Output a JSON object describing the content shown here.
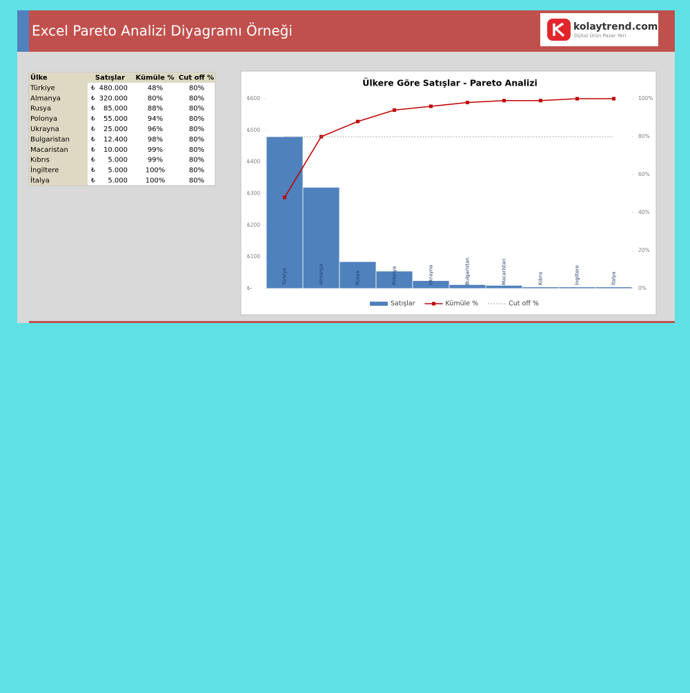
{
  "header": {
    "title": "Excel Pareto Analizi Diyagramı Örneği",
    "brand": "kolaytrend.com",
    "tagline": "Dijital Ürün Pazar Yeri"
  },
  "table": {
    "header": [
      "Ülke",
      "Satışlar",
      "Kümüle %",
      "Cut off %"
    ],
    "rows": [
      [
        "Türkiye",
        "₺",
        "480.000",
        "48%",
        "80%"
      ],
      [
        "Almanya",
        "₺",
        "320.000",
        "80%",
        "80%"
      ],
      [
        "Rusya",
        "₺",
        "85.000",
        "88%",
        "80%"
      ],
      [
        "Polonya",
        "₺",
        "55.000",
        "94%",
        "80%"
      ],
      [
        "Ukrayna",
        "₺",
        "25.000",
        "96%",
        "80%"
      ],
      [
        "Bulgaristan",
        "₺",
        "12.400",
        "98%",
        "80%"
      ],
      [
        "Macaristan",
        "₺",
        "10.000",
        "99%",
        "80%"
      ],
      [
        "Kıbrıs",
        "₺",
        "5.000",
        "99%",
        "80%"
      ],
      [
        "İngiltere",
        "₺",
        "5.000",
        "100%",
        "80%"
      ],
      [
        "İtalya",
        "₺",
        "5.000",
        "100%",
        "80%"
      ]
    ]
  },
  "chart_data": {
    "type": "bar",
    "title": "Ülkere Göre Satışlar - Pareto Analizi",
    "categories": [
      "Türkiye",
      "Almanya",
      "Rusya",
      "Polonya",
      "Ukrayna",
      "Bulgaristan",
      "Macaristan",
      "Kıbrıs",
      "İngiltere",
      "İtalya"
    ],
    "series": [
      {
        "name": "Satışlar",
        "type": "bar",
        "color": "#4f81bd",
        "values": [
          480,
          320,
          85,
          55,
          25,
          12.4,
          10,
          5,
          5,
          5
        ]
      },
      {
        "name": "Kümüle %",
        "type": "line",
        "axis": "y2",
        "color": "#c00000",
        "marker": "square",
        "values": [
          48,
          80,
          88,
          94,
          96,
          98,
          99,
          99,
          100,
          100
        ]
      },
      {
        "name": "Cut off %",
        "type": "line",
        "axis": "y2",
        "color": "#a6a6a6",
        "dashed": true,
        "values": [
          80,
          80,
          80,
          80,
          80,
          80,
          80,
          80,
          80,
          80
        ]
      }
    ],
    "ylim": [
      0,
      600
    ],
    "yticks": [
      {
        "value": 0,
        "label": "₺-"
      },
      {
        "value": 100,
        "label": "₺100"
      },
      {
        "value": 200,
        "label": "₺200"
      },
      {
        "value": 300,
        "label": "₺300"
      },
      {
        "value": 400,
        "label": "₺400"
      },
      {
        "value": 500,
        "label": "₺500"
      },
      {
        "value": 600,
        "label": "₺600"
      }
    ],
    "y2lim": [
      0,
      100
    ],
    "y2ticks": [
      {
        "value": 0,
        "label": "0%"
      },
      {
        "value": 20,
        "label": "20%"
      },
      {
        "value": 40,
        "label": "40%"
      },
      {
        "value": 60,
        "label": "60%"
      },
      {
        "value": 80,
        "label": "80%"
      },
      {
        "value": 100,
        "label": "100%"
      }
    ],
    "legend": "bottom"
  }
}
